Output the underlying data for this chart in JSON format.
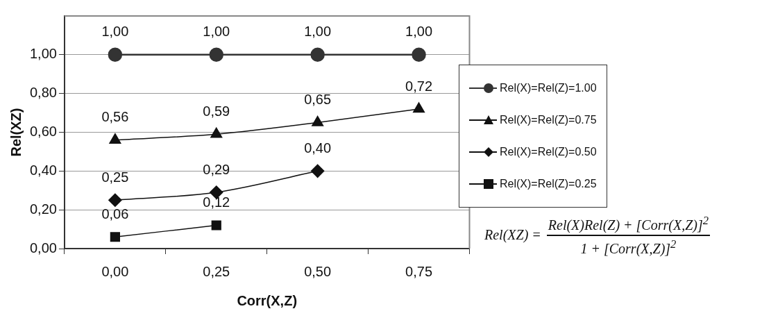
{
  "chart_data": {
    "type": "line",
    "xlabel": "Corr(X,Z)",
    "ylabel": "Rel(XZ)",
    "categories": [
      "0,00",
      "0,25",
      "0,50",
      "0,75"
    ],
    "series": [
      {
        "name": "Rel(X)=Rel(Z)=1.00",
        "color": "#333333",
        "marker": "circle",
        "values": [
          1.0,
          1.0,
          1.0,
          1.0
        ],
        "value_labels": [
          "1,00",
          "1,00",
          "1,00",
          "1,00"
        ]
      },
      {
        "name": "Rel(X)=Rel(Z)=0.75",
        "color": "#111111",
        "marker": "triangle",
        "values": [
          0.56,
          0.59,
          0.65,
          0.72
        ],
        "value_labels": [
          "0,56",
          "0,59",
          "0,65",
          "0,72"
        ]
      },
      {
        "name": "Rel(X)=Rel(Z)=0.50",
        "color": "#111111",
        "marker": "diamond",
        "values": [
          0.25,
          0.29,
          0.4,
          null
        ],
        "value_labels": [
          "0,25",
          "0,29",
          "0,40",
          null
        ]
      },
      {
        "name": "Rel(X)=Rel(Z)=0.25",
        "color": "#111111",
        "marker": "square",
        "values": [
          0.06,
          0.12,
          null,
          null
        ],
        "value_labels": [
          "0,06",
          "0,12",
          null,
          null
        ]
      }
    ],
    "ylim": [
      0,
      1.2
    ],
    "yticks": [
      {
        "value": 0,
        "label": "0,00"
      },
      {
        "value": 0.2,
        "label": "0,20"
      },
      {
        "value": 0.4,
        "label": "0,40"
      },
      {
        "value": 0.6,
        "label": "0,60"
      },
      {
        "value": 0.8,
        "label": "0,80"
      },
      {
        "value": 1.0,
        "label": "1,00"
      }
    ],
    "grid": "y",
    "legend": "right",
    "annotations": [
      "Rel(XZ) =",
      "Rel(X)Rel(Z) + [Corr(X,Z)]$^{2}$",
      "1 + [Corr(X,Z)]$^{2}$"
    ]
  }
}
